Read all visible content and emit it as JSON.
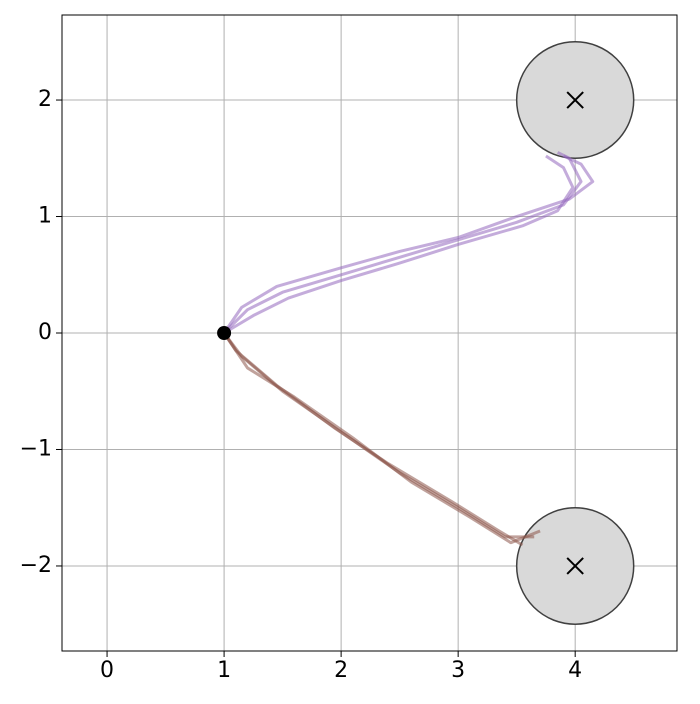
{
  "chart_data": {
    "type": "line",
    "xlim": [
      -0.385,
      4.87
    ],
    "ylim": [
      -2.73,
      2.73
    ],
    "xticks": [
      0,
      1,
      2,
      3,
      4
    ],
    "yticks": [
      {
        "value": -2,
        "label": "−2"
      },
      {
        "value": -1,
        "label": "−1"
      },
      0,
      1,
      2
    ],
    "grid": true,
    "series": [
      {
        "color": "#9467bd",
        "x": [
          1,
          1.2,
          1.5,
          2,
          2.5,
          3,
          3.5,
          3.9,
          4.05,
          3.95,
          3.85
        ],
        "y": [
          0,
          0.2,
          0.35,
          0.5,
          0.65,
          0.8,
          0.95,
          1.1,
          1.3,
          1.5,
          1.55
        ]
      },
      {
        "color": "#9467bd",
        "x": [
          1,
          1.15,
          1.45,
          2,
          2.5,
          3,
          3.5,
          3.95,
          4.15,
          4.05,
          3.9
        ],
        "y": [
          0,
          0.22,
          0.4,
          0.56,
          0.7,
          0.82,
          1.0,
          1.15,
          1.3,
          1.45,
          1.52
        ]
      },
      {
        "color": "#9467bd",
        "x": [
          1,
          1.25,
          1.55,
          2,
          2.5,
          3,
          3.55,
          3.85,
          3.98,
          3.9,
          3.75
        ],
        "y": [
          0,
          0.15,
          0.3,
          0.45,
          0.6,
          0.76,
          0.92,
          1.05,
          1.25,
          1.42,
          1.52
        ]
      },
      {
        "color": "#8c564b",
        "x": [
          1,
          1.15,
          1.5,
          2,
          2.5,
          3,
          3.4,
          3.65
        ],
        "y": [
          0,
          -0.2,
          -0.5,
          -0.85,
          -1.2,
          -1.5,
          -1.75,
          -1.75
        ]
      },
      {
        "color": "#8c564b",
        "x": [
          1,
          1.2,
          1.6,
          2.1,
          2.6,
          3.1,
          3.45,
          3.7
        ],
        "y": [
          0,
          -0.3,
          -0.55,
          -0.9,
          -1.28,
          -1.58,
          -1.8,
          -1.7
        ]
      },
      {
        "color": "#8c564b",
        "x": [
          1,
          1.1,
          1.45,
          1.95,
          2.4,
          2.95,
          3.35,
          3.55
        ],
        "y": [
          0,
          -0.15,
          -0.45,
          -0.82,
          -1.12,
          -1.45,
          -1.7,
          -1.82
        ]
      }
    ],
    "goals": [
      {
        "x": 4,
        "y": 2,
        "r": 0.5
      },
      {
        "x": 4,
        "y": -2,
        "r": 0.5
      }
    ],
    "start": {
      "x": 1,
      "y": 0
    }
  }
}
